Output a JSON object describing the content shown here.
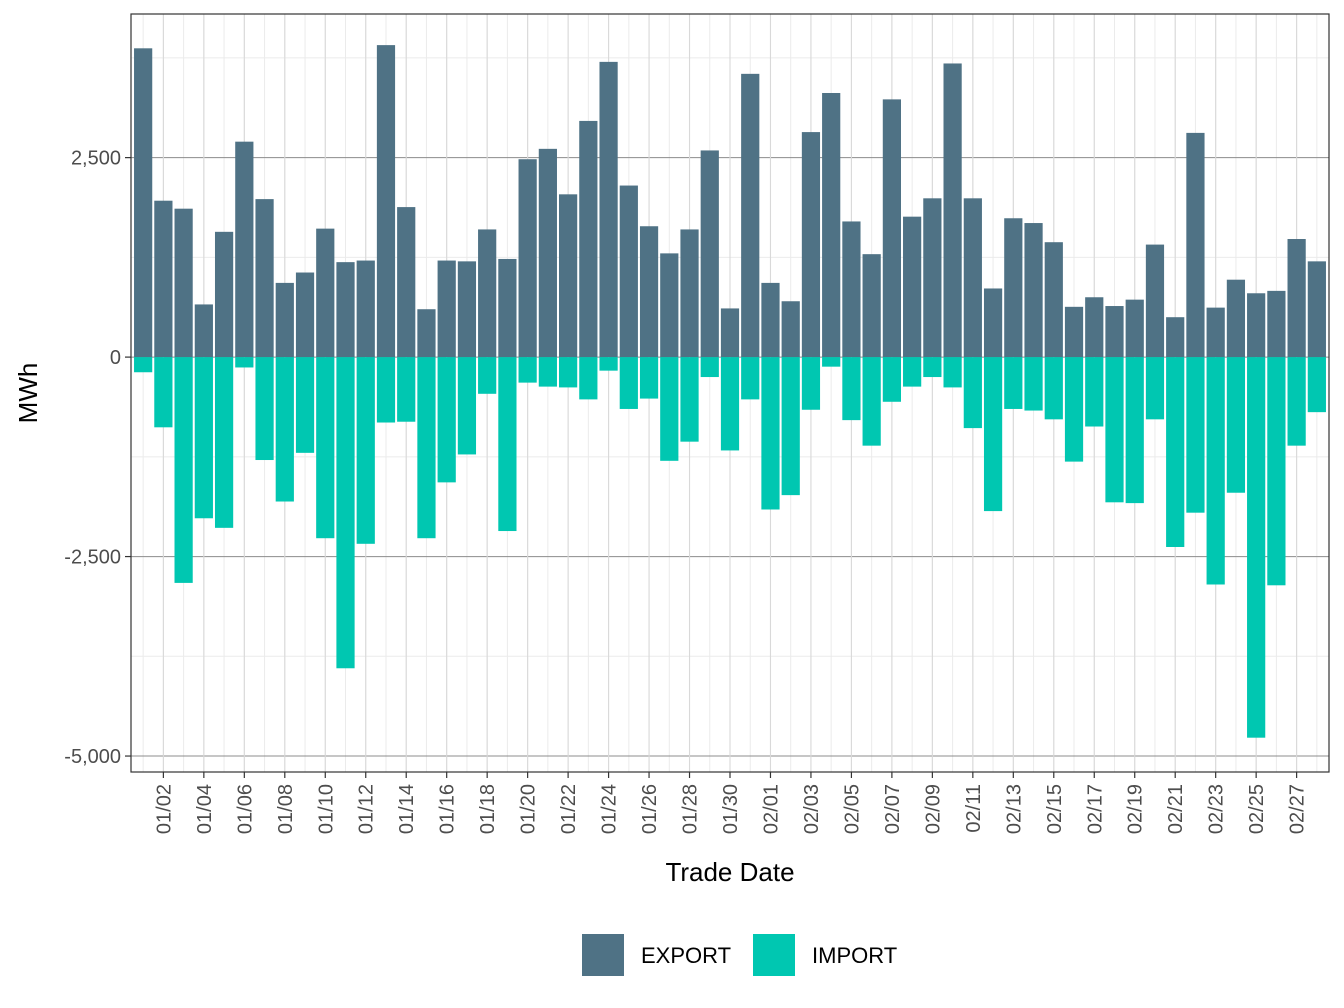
{
  "chart_data": {
    "type": "bar",
    "xlabel": "Trade Date",
    "ylabel": "MWh",
    "ylim": [
      -5200,
      4300
    ],
    "y_ticks": [
      2500,
      0,
      -2500,
      -5000
    ],
    "y_tick_labels": [
      "2,500",
      "0",
      "-2,500",
      "-5,000"
    ],
    "x_tick_labels": [
      "01/02",
      "01/04",
      "01/06",
      "01/08",
      "01/10",
      "01/12",
      "01/14",
      "01/16",
      "01/18",
      "01/20",
      "01/22",
      "01/24",
      "01/26",
      "01/28",
      "01/30",
      "02/01",
      "02/03",
      "02/05",
      "02/07",
      "02/09",
      "02/11",
      "02/13",
      "02/15",
      "02/17",
      "02/19",
      "02/21",
      "02/23",
      "02/25",
      "02/27"
    ],
    "categories": [
      "01/01",
      "01/02",
      "01/03",
      "01/04",
      "01/05",
      "01/06",
      "01/07",
      "01/08",
      "01/09",
      "01/10",
      "01/11",
      "01/12",
      "01/13",
      "01/14",
      "01/15",
      "01/16",
      "01/17",
      "01/18",
      "01/19",
      "01/20",
      "01/21",
      "01/22",
      "01/23",
      "01/24",
      "01/25",
      "01/26",
      "01/27",
      "01/28",
      "01/29",
      "01/30",
      "01/31",
      "02/01",
      "02/02",
      "02/03",
      "02/04",
      "02/05",
      "02/06",
      "02/07",
      "02/08",
      "02/09",
      "02/10",
      "02/11",
      "02/12",
      "02/13",
      "02/14",
      "02/15",
      "02/16",
      "02/17",
      "02/18",
      "02/19",
      "02/20",
      "02/21",
      "02/22",
      "02/23",
      "02/24",
      "02/25",
      "02/26",
      "02/27",
      "02/28"
    ],
    "series": [
      {
        "name": "EXPORT",
        "color": "#4f7285",
        "values": [
          3870,
          1960,
          1860,
          660,
          1570,
          2700,
          1980,
          930,
          1060,
          1610,
          1190,
          1210,
          3910,
          1880,
          600,
          1210,
          1200,
          1600,
          1230,
          2480,
          2610,
          2040,
          2960,
          3700,
          2150,
          1640,
          1300,
          1600,
          2590,
          610,
          3550,
          930,
          700,
          2820,
          3310,
          1700,
          1290,
          3230,
          1760,
          1990,
          3680,
          1990,
          860,
          1740,
          1680,
          1440,
          630,
          750,
          640,
          720,
          1410,
          500,
          2810,
          620,
          970,
          800,
          830,
          1480,
          1200
        ]
      },
      {
        "name": "IMPORT",
        "color": "#00c7b1",
        "values": [
          -190,
          -880,
          -2830,
          -2020,
          -2140,
          -130,
          -1290,
          -1810,
          -1200,
          -2270,
          -3900,
          -2340,
          -820,
          -810,
          -2270,
          -1570,
          -1220,
          -460,
          -2180,
          -320,
          -370,
          -380,
          -530,
          -170,
          -650,
          -520,
          -1300,
          -1060,
          -250,
          -1170,
          -530,
          -1910,
          -1730,
          -660,
          -120,
          -790,
          -1110,
          -560,
          -370,
          -250,
          -380,
          -890,
          -1930,
          -650,
          -670,
          -780,
          -1310,
          -870,
          -1820,
          -1830,
          -780,
          -2380,
          -1950,
          -2850,
          -1700,
          -4770,
          -2860,
          -1110,
          -690
        ]
      }
    ],
    "legend": {
      "position": "bottom",
      "entries": [
        "EXPORT",
        "IMPORT"
      ]
    },
    "grid": true
  }
}
